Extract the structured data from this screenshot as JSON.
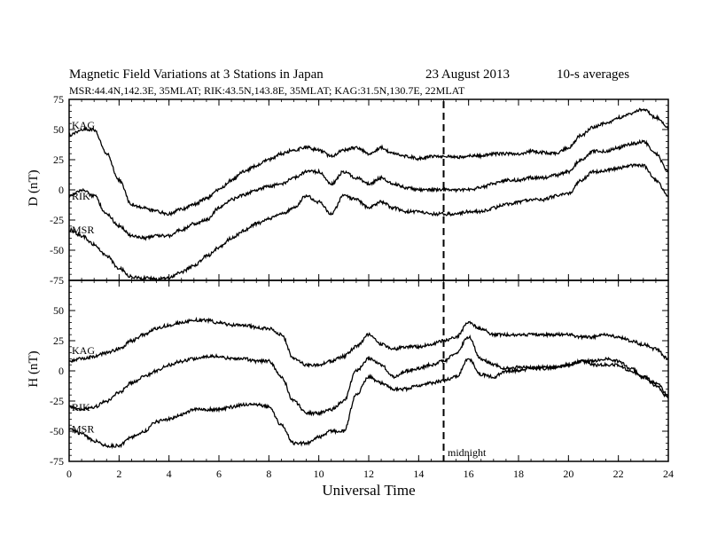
{
  "title": "Magnetic Field Variations at 3 Stations in Japan",
  "date": "23  August  2013",
  "averaging": "10-s averages",
  "stations_info": "MSR:44.4N,142.3E, 35MLAT;  RIK:43.5N,143.8E, 35MLAT;  KAG:31.5N,130.7E, 22MLAT",
  "xlabel": "Universal Time",
  "midnight_label": "midnight",
  "chart_data": [
    {
      "type": "line",
      "panel": "top",
      "ylabel": "D (nT)",
      "ylim": [
        -75,
        75
      ],
      "yticks": [
        75,
        50,
        25,
        0,
        -25,
        -50,
        -75
      ],
      "xlim": [
        0,
        24
      ],
      "xticks": [
        0,
        2,
        4,
        6,
        8,
        10,
        12,
        14,
        16,
        18,
        20,
        22,
        24
      ],
      "vline_x": 15,
      "x": [
        0,
        0.5,
        1,
        1.5,
        2,
        2.5,
        3,
        3.5,
        4,
        4.5,
        5,
        5.5,
        6,
        6.5,
        7,
        7.5,
        8,
        8.5,
        9,
        9.5,
        10,
        10.5,
        11,
        11.5,
        12,
        12.5,
        13,
        13.5,
        14,
        14.5,
        15,
        15.5,
        16,
        16.5,
        17,
        17.5,
        18,
        18.5,
        19,
        19.5,
        20,
        20.5,
        21,
        21.5,
        22,
        22.5,
        23,
        23.5,
        24
      ],
      "series": [
        {
          "name": "KAG",
          "values": [
            45,
            50,
            50,
            30,
            8,
            -12,
            -15,
            -18,
            -20,
            -16,
            -12,
            -7,
            0,
            8,
            15,
            20,
            25,
            30,
            33,
            35,
            33,
            28,
            33,
            35,
            30,
            35,
            30,
            28,
            26,
            28,
            28,
            27,
            28,
            28,
            30,
            30,
            30,
            32,
            31,
            30,
            35,
            45,
            52,
            55,
            60,
            63,
            67,
            60,
            52
          ]
        },
        {
          "name": "RIK",
          "values": [
            -5,
            0,
            -5,
            -20,
            -30,
            -38,
            -40,
            -38,
            -38,
            -33,
            -28,
            -25,
            -15,
            -8,
            -4,
            0,
            3,
            5,
            10,
            15,
            15,
            5,
            15,
            10,
            5,
            10,
            5,
            2,
            0,
            0,
            0,
            0,
            0,
            2,
            5,
            8,
            8,
            10,
            10,
            12,
            15,
            25,
            32,
            32,
            35,
            38,
            40,
            30,
            15
          ]
        },
        {
          "name": "MSR",
          "values": [
            -33,
            -38,
            -45,
            -55,
            -65,
            -72,
            -73,
            -74,
            -73,
            -68,
            -63,
            -55,
            -48,
            -40,
            -34,
            -28,
            -24,
            -20,
            -15,
            -5,
            -10,
            -20,
            -5,
            -8,
            -15,
            -10,
            -15,
            -18,
            -18,
            -20,
            -20,
            -20,
            -18,
            -18,
            -15,
            -12,
            -10,
            -8,
            -8,
            -5,
            -3,
            8,
            15,
            16,
            18,
            20,
            20,
            8,
            -5
          ]
        }
      ]
    },
    {
      "type": "line",
      "panel": "bottom",
      "ylabel": "H (nT)",
      "ylim": [
        -75,
        75
      ],
      "yticks": [
        50,
        25,
        0,
        -25,
        -50,
        -75
      ],
      "xlim": [
        0,
        24
      ],
      "xticks": [
        0,
        2,
        4,
        6,
        8,
        10,
        12,
        14,
        16,
        18,
        20,
        22,
        24
      ],
      "vline_x": 15,
      "x": [
        0,
        0.5,
        1,
        1.5,
        2,
        2.5,
        3,
        3.5,
        4,
        4.5,
        5,
        5.5,
        6,
        6.5,
        7,
        7.5,
        8,
        8.5,
        9,
        9.5,
        10,
        10.5,
        11,
        11.5,
        12,
        12.5,
        13,
        13.5,
        14,
        14.5,
        15,
        15.5,
        16,
        16.5,
        17,
        17.5,
        18,
        18.5,
        19,
        19.5,
        20,
        20.5,
        21,
        21.5,
        22,
        22.5,
        23,
        23.5,
        24
      ],
      "series": [
        {
          "name": "KAG",
          "values": [
            8,
            10,
            12,
            15,
            18,
            25,
            30,
            35,
            38,
            40,
            42,
            42,
            40,
            38,
            38,
            36,
            35,
            30,
            10,
            5,
            5,
            8,
            12,
            20,
            30,
            22,
            18,
            20,
            20,
            22,
            25,
            28,
            40,
            35,
            30,
            30,
            30,
            30,
            30,
            30,
            30,
            28,
            28,
            30,
            28,
            25,
            22,
            18,
            10
          ]
        },
        {
          "name": "RIK",
          "values": [
            -30,
            -32,
            -30,
            -25,
            -18,
            -10,
            -5,
            0,
            5,
            8,
            10,
            12,
            12,
            10,
            10,
            8,
            8,
            -5,
            -25,
            -35,
            -35,
            -32,
            -25,
            0,
            10,
            5,
            -5,
            0,
            2,
            5,
            8,
            15,
            28,
            10,
            5,
            2,
            3,
            3,
            3,
            3,
            5,
            8,
            5,
            5,
            5,
            0,
            -5,
            -10,
            -20
          ]
        },
        {
          "name": "MSR",
          "values": [
            -48,
            -52,
            -58,
            -62,
            -62,
            -55,
            -50,
            -42,
            -40,
            -36,
            -32,
            -32,
            -32,
            -30,
            -28,
            -28,
            -30,
            -45,
            -60,
            -60,
            -55,
            -50,
            -50,
            -20,
            -5,
            -10,
            -15,
            -15,
            -12,
            -10,
            -8,
            -5,
            10,
            -3,
            -5,
            0,
            0,
            2,
            2,
            3,
            5,
            8,
            8,
            10,
            8,
            2,
            -5,
            -12,
            -22
          ]
        }
      ]
    }
  ]
}
